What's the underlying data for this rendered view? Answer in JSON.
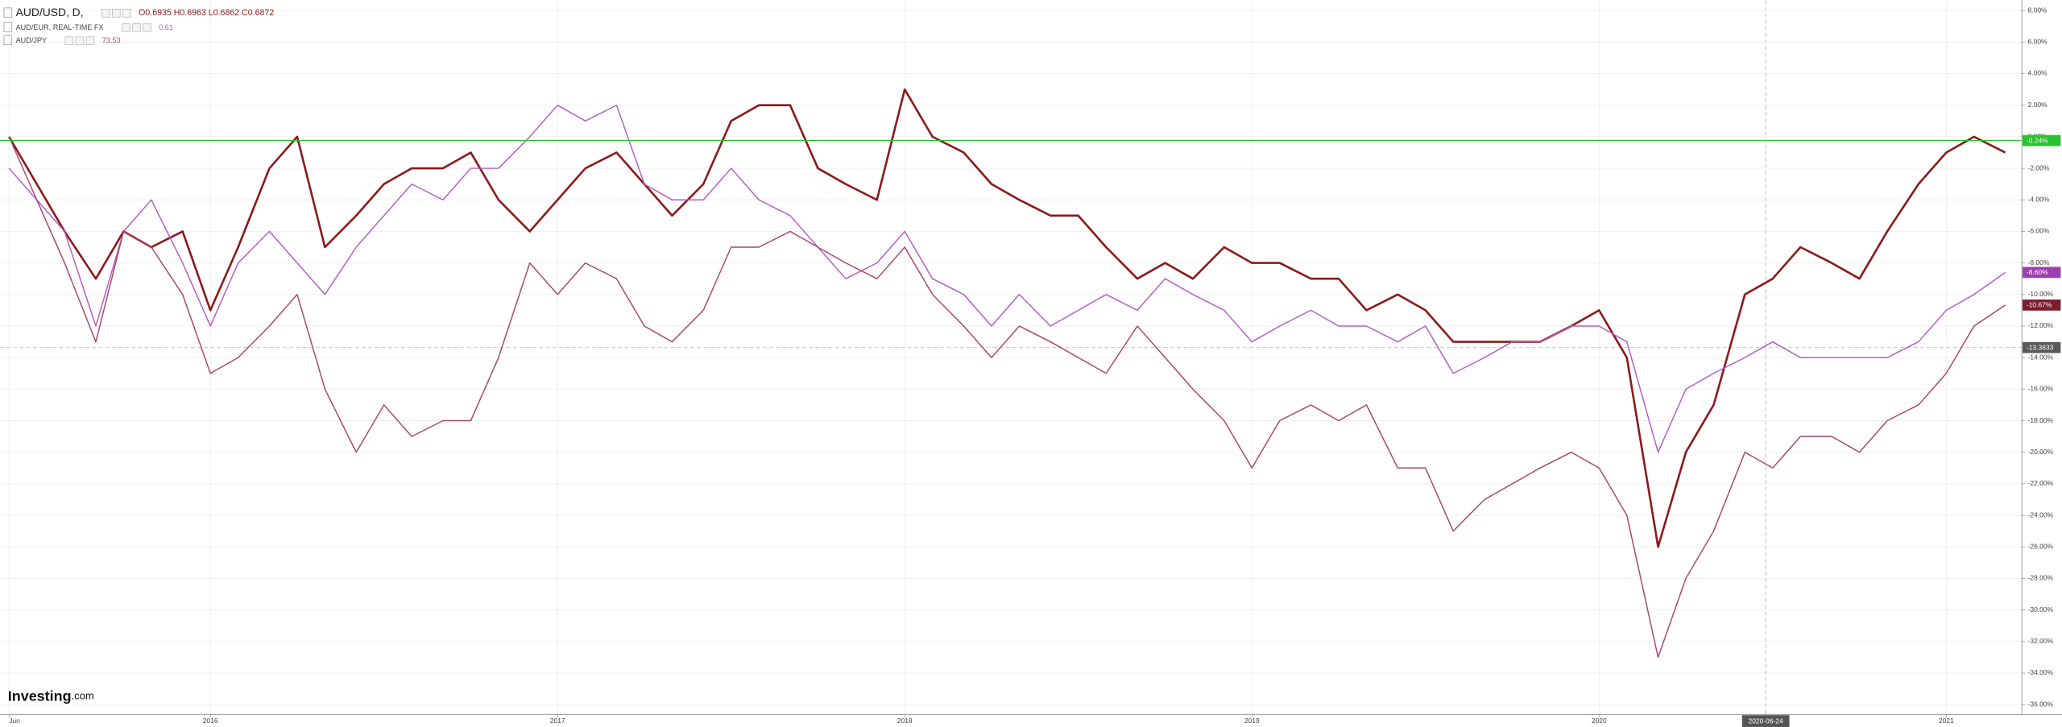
{
  "chart_data": {
    "type": "line",
    "series": [
      {
        "name": "AUD/USD, D,",
        "color": "#8b1a1a",
        "header_value": "O0.6935 H0.6963 L0.6862 C0.6872",
        "values": [
          0,
          -3,
          -6,
          -9,
          -6,
          -7,
          -6,
          -11,
          -7,
          -2,
          0,
          -7,
          -5,
          -3,
          -2,
          -2,
          -1,
          -4,
          -6,
          -4,
          -2,
          -1,
          -3,
          -5,
          -3,
          1,
          2,
          2,
          -2,
          -3,
          -4,
          3,
          0,
          -1,
          -3,
          -4,
          -5,
          -5,
          -7,
          -9,
          -8,
          -9,
          -7,
          -8,
          -8,
          -9,
          -9,
          -11,
          -10,
          -11,
          -13,
          -13,
          -13,
          -13,
          -12,
          -11,
          -14,
          -26,
          -20,
          -17,
          -10,
          -9,
          -7,
          -8,
          -9,
          -6,
          -3,
          -1,
          0,
          -1
        ]
      },
      {
        "name": "AUD/EUR, REAL-TIME FX",
        "color": "#b35cc4",
        "header_value": "0.61",
        "values": [
          -2,
          -4,
          -6,
          -12,
          -6,
          -4,
          -8,
          -12,
          -8,
          -6,
          -8,
          -10,
          -7,
          -5,
          -3,
          -4,
          -2,
          -2,
          0,
          2,
          1,
          2,
          -3,
          -4,
          -4,
          -2,
          -4,
          -5,
          -7,
          -9,
          -8,
          -6,
          -9,
          -10,
          -12,
          -10,
          -12,
          -11,
          -10,
          -11,
          -9,
          -10,
          -11,
          -13,
          -12,
          -11,
          -12,
          -12,
          -13,
          -12,
          -15,
          -14,
          -13,
          -13,
          -12,
          -12,
          -13,
          -20,
          -16,
          -15,
          -14,
          -13,
          -14,
          -14,
          -14,
          -14,
          -13,
          -11,
          -10,
          -8.6
        ]
      },
      {
        "name": "AUD/JPY",
        "color": "#a8456e",
        "header_value": "73.53",
        "values": [
          0,
          -4,
          -8,
          -13,
          -6,
          -7,
          -10,
          -15,
          -14,
          -12,
          -10,
          -16,
          -20,
          -17,
          -19,
          -18,
          -18,
          -14,
          -8,
          -10,
          -8,
          -9,
          -12,
          -13,
          -11,
          -7,
          -7,
          -6,
          -7,
          -8,
          -9,
          -7,
          -10,
          -12,
          -14,
          -12,
          -13,
          -14,
          -15,
          -12,
          -14,
          -16,
          -18,
          -21,
          -18,
          -17,
          -18,
          -17,
          -21,
          -21,
          -25,
          -23,
          -22,
          -21,
          -20,
          -21,
          -24,
          -33,
          -28,
          -25,
          -20,
          -21,
          -19,
          -19,
          -20,
          -18,
          -17,
          -15,
          -12,
          -10.67
        ]
      }
    ],
    "x": [
      2015.42,
      2015.5,
      2015.58,
      2015.67,
      2015.75,
      2015.83,
      2015.92,
      2016,
      2016.08,
      2016.17,
      2016.25,
      2016.33,
      2016.42,
      2016.5,
      2016.58,
      2016.67,
      2016.75,
      2016.83,
      2016.92,
      2017,
      2017.08,
      2017.17,
      2017.25,
      2017.33,
      2017.42,
      2017.5,
      2017.58,
      2017.67,
      2017.75,
      2017.83,
      2017.92,
      2018,
      2018.08,
      2018.17,
      2018.25,
      2018.33,
      2018.42,
      2018.5,
      2018.58,
      2018.67,
      2018.75,
      2018.83,
      2018.92,
      2019,
      2019.08,
      2019.17,
      2019.25,
      2019.33,
      2019.42,
      2019.5,
      2019.58,
      2019.67,
      2019.75,
      2019.83,
      2019.92,
      2020,
      2020.08,
      2020.17,
      2020.25,
      2020.33,
      2020.42,
      2020.5,
      2020.58,
      2020.67,
      2020.75,
      2020.83,
      2020.92,
      2021,
      2021.08,
      2021.17
    ],
    "xlim": [
      2015.394,
      2021.216
    ],
    "xticks": [
      {
        "value": 2015.42,
        "label": "Jun"
      },
      2016,
      2017,
      2018,
      2019,
      2020,
      2021
    ],
    "ylim": [
      8.667,
      -36.583
    ],
    "yticks": [
      {
        "value": 8,
        "label": "8.00%"
      },
      {
        "value": 6,
        "label": "6.00%"
      },
      {
        "value": 4,
        "label": "4.00%"
      },
      {
        "value": 2,
        "label": "2.00%"
      },
      {
        "value": 0,
        "label": "0.00%"
      },
      {
        "value": -2,
        "label": "-2.00%"
      },
      {
        "value": -4,
        "label": "-4.00%"
      },
      {
        "value": -6,
        "label": "-6.00%"
      },
      {
        "value": -8,
        "label": "-8.00%"
      },
      {
        "value": -10,
        "label": "-10.00%"
      },
      {
        "value": -12,
        "label": "-12.00%"
      },
      {
        "value": -14,
        "label": "-14.00%"
      },
      {
        "value": -16,
        "label": "-16.00%"
      },
      {
        "value": -18,
        "label": "-18.00%"
      },
      {
        "value": -20,
        "label": "-20.00%"
      },
      {
        "value": -22,
        "label": "-22.00%"
      },
      {
        "value": -24,
        "label": "-24.00%"
      },
      {
        "value": -26,
        "label": "-26.00%"
      },
      {
        "value": -28,
        "label": "-28.00%"
      },
      {
        "value": -30,
        "label": "-30.00%"
      },
      {
        "value": -32,
        "label": "-32.00%"
      },
      {
        "value": -34,
        "label": "-34.00%"
      },
      {
        "value": -36,
        "label": "-36.00%"
      }
    ],
    "grid": true,
    "price_labels": [
      {
        "value": -0.24,
        "label": "-0.24%",
        "color": "#27c22d",
        "line": true
      },
      {
        "value": -8.6,
        "label": "-8.60%",
        "color": "#9c3fae",
        "line": false
      },
      {
        "value": -10.67,
        "label": "-10.67%",
        "color": "#7a1d2c",
        "line": false
      },
      {
        "value": -13.3633,
        "label": "-13.3633",
        "color": "#5a5a5a",
        "line": false
      }
    ],
    "crosshair": {
      "x": {
        "value": 2020.48,
        "label": "2020-06-24"
      },
      "y": -13.3633
    },
    "logo": "Investing",
    "logo_suffix": ".com"
  }
}
